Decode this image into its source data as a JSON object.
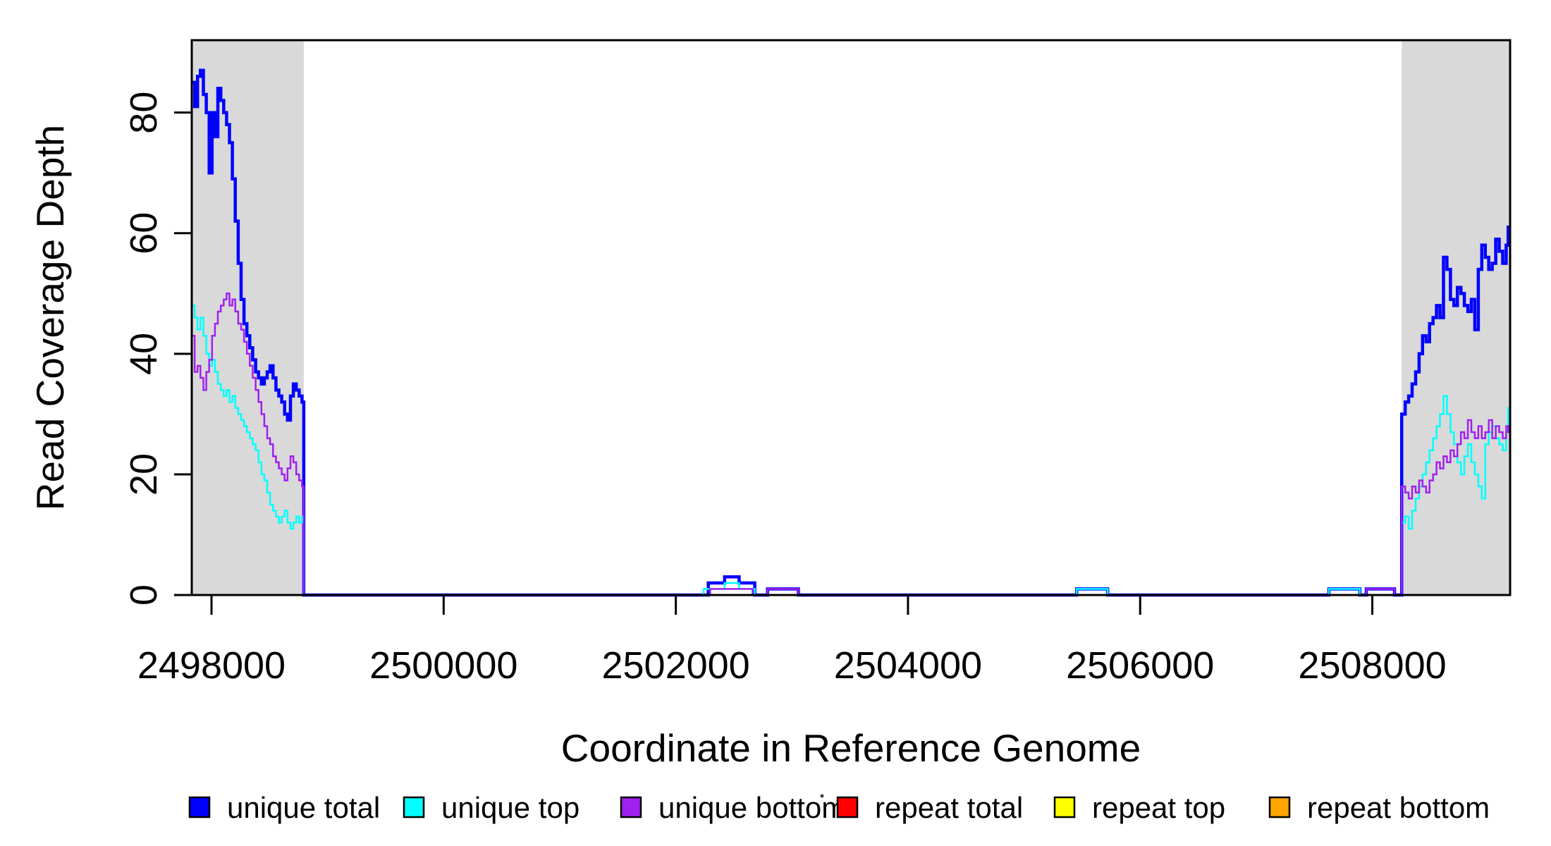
{
  "figure_title": "",
  "chart_data": {
    "type": "line",
    "subtype": "step",
    "title": "",
    "xlabel": "Coordinate in Reference Genome",
    "ylabel": "Read Coverage Depth",
    "xlim": [
      2497830,
      2509187
    ],
    "ylim": [
      0,
      92
    ],
    "x_ticks": [
      2498000,
      2500000,
      2502000,
      2504000,
      2506000,
      2508000
    ],
    "y_ticks": [
      0,
      20,
      40,
      60,
      80
    ],
    "grid": false,
    "legend_position": "bottom",
    "plot_background": "#FFFFFF",
    "plot_border_color": "#000000",
    "shaded_regions": [
      {
        "label": "repeat-region-left",
        "x0": 2497830,
        "x1": 2498795,
        "color": "#D9D9D9"
      },
      {
        "label": "repeat-region-right",
        "x0": 2508253,
        "x1": 2509187,
        "color": "#D9D9D9"
      }
    ],
    "series": [
      {
        "name": "unique total",
        "color": "#0000FF",
        "line_width": 4.5,
        "x": [
          2497830,
          2497855,
          2497880,
          2497905,
          2497930,
          2497955,
          2497980,
          2498005,
          2498030,
          2498055,
          2498080,
          2498105,
          2498130,
          2498155,
          2498180,
          2498205,
          2498230,
          2498255,
          2498280,
          2498305,
          2498330,
          2498355,
          2498380,
          2498405,
          2498430,
          2498455,
          2498480,
          2498505,
          2498530,
          2498555,
          2498580,
          2498605,
          2498630,
          2498655,
          2498680,
          2498705,
          2498730,
          2498755,
          2498780,
          2498795,
          2502280,
          2502420,
          2502545,
          2502680,
          2502790,
          2503056,
          2505453,
          2505720,
          2507626,
          2507893,
          2507948,
          2508191,
          2508253,
          2508283,
          2508313,
          2508343,
          2508373,
          2508403,
          2508433,
          2508463,
          2508493,
          2508523,
          2508553,
          2508583,
          2508613,
          2508643,
          2508673,
          2508703,
          2508733,
          2508763,
          2508793,
          2508823,
          2508853,
          2508883,
          2508913,
          2508943,
          2508973,
          2509003,
          2509033,
          2509063,
          2509093,
          2509123,
          2509153,
          2509170
        ],
        "v": [
          85,
          81,
          86,
          87,
          83,
          80,
          70,
          80,
          76,
          84,
          82,
          80,
          78,
          75,
          69,
          62,
          55,
          49,
          45,
          43,
          41,
          39,
          37,
          36,
          35,
          36,
          37,
          38,
          36,
          34,
          33,
          32,
          30,
          29,
          33,
          35,
          34,
          33,
          32,
          0,
          2,
          3,
          2,
          0,
          1,
          0,
          1,
          0,
          1,
          0,
          1,
          0,
          30,
          32,
          33,
          35,
          37,
          40,
          43,
          42,
          45,
          46,
          48,
          46,
          56,
          54,
          49,
          48,
          51,
          50,
          48,
          47,
          49,
          44,
          54,
          58,
          56,
          54,
          55,
          59,
          57,
          55,
          58,
          61
        ]
      },
      {
        "name": "unique top",
        "color": "#00FFFF",
        "line_width": 2.5,
        "x": [
          2497830,
          2497855,
          2497880,
          2497905,
          2497930,
          2497955,
          2497980,
          2498005,
          2498030,
          2498055,
          2498080,
          2498105,
          2498130,
          2498155,
          2498180,
          2498205,
          2498230,
          2498255,
          2498280,
          2498305,
          2498330,
          2498355,
          2498380,
          2498405,
          2498430,
          2498455,
          2498480,
          2498505,
          2498530,
          2498555,
          2498580,
          2498605,
          2498630,
          2498655,
          2498680,
          2498705,
          2498730,
          2498755,
          2498780,
          2498795,
          2502240,
          2502420,
          2502545,
          2502680,
          2505453,
          2505720,
          2507626,
          2507893,
          2508253,
          2508283,
          2508313,
          2508343,
          2508373,
          2508403,
          2508433,
          2508463,
          2508493,
          2508523,
          2508553,
          2508583,
          2508613,
          2508643,
          2508673,
          2508703,
          2508733,
          2508763,
          2508793,
          2508823,
          2508853,
          2508883,
          2508913,
          2508943,
          2508973,
          2509003,
          2509033,
          2509063,
          2509093,
          2509123,
          2509153,
          2509170
        ],
        "v": [
          48,
          46,
          44,
          46,
          43,
          40,
          38,
          39,
          37,
          35,
          34,
          33,
          34,
          32,
          33,
          31,
          30,
          29,
          28,
          27,
          26,
          25,
          24,
          22,
          20,
          19,
          17,
          15,
          14,
          13,
          12,
          13,
          14,
          12,
          11,
          12,
          13,
          12,
          13,
          0,
          1,
          2,
          1,
          0,
          1,
          0,
          1,
          0,
          12,
          13,
          11,
          14,
          16,
          18,
          20,
          22,
          24,
          26,
          28,
          30,
          33,
          30,
          27,
          25,
          22,
          20,
          23,
          25,
          22,
          20,
          18,
          16,
          25,
          27,
          28,
          26,
          25,
          24,
          27,
          31
        ]
      },
      {
        "name": "unique bottom",
        "color": "#A020F0",
        "line_width": 2.5,
        "x": [
          2497830,
          2497855,
          2497880,
          2497905,
          2497930,
          2497955,
          2497980,
          2498005,
          2498030,
          2498055,
          2498080,
          2498105,
          2498130,
          2498155,
          2498180,
          2498205,
          2498230,
          2498255,
          2498280,
          2498305,
          2498330,
          2498355,
          2498380,
          2498405,
          2498430,
          2498455,
          2498480,
          2498505,
          2498530,
          2498555,
          2498580,
          2498605,
          2498630,
          2498655,
          2498680,
          2498705,
          2498730,
          2498755,
          2498780,
          2498795,
          2502296,
          2502661,
          2502790,
          2503056,
          2507948,
          2508191,
          2508253,
          2508283,
          2508313,
          2508343,
          2508373,
          2508403,
          2508433,
          2508463,
          2508493,
          2508523,
          2508553,
          2508583,
          2508613,
          2508643,
          2508673,
          2508703,
          2508733,
          2508763,
          2508793,
          2508823,
          2508853,
          2508883,
          2508913,
          2508943,
          2508973,
          2509003,
          2509033,
          2509063,
          2509093,
          2509123,
          2509153,
          2509170
        ],
        "v": [
          43,
          37,
          38,
          36,
          34,
          37,
          39,
          43,
          45,
          47,
          48,
          49,
          50,
          48,
          49,
          47,
          45,
          44,
          42,
          40,
          38,
          36,
          34,
          32,
          30,
          28,
          26,
          25,
          23,
          22,
          21,
          20,
          19,
          21,
          23,
          22,
          20,
          19,
          18,
          0,
          1,
          0,
          1,
          0,
          1,
          0,
          18,
          17,
          16,
          18,
          17,
          19,
          18,
          17,
          19,
          20,
          22,
          21,
          23,
          22,
          24,
          23,
          25,
          27,
          26,
          29,
          27,
          26,
          28,
          26,
          27,
          29,
          26,
          28,
          27,
          26,
          28,
          27
        ]
      },
      {
        "name": "repeat total",
        "color": "#FF0000",
        "line_width": 2.5,
        "value": 0,
        "segments": [
          [
            2497830,
            2498795
          ],
          [
            2502450,
            2502680
          ],
          [
            2505453,
            2505720
          ],
          [
            2507626,
            2507893
          ],
          [
            2508253,
            2509187
          ]
        ]
      },
      {
        "name": "repeat top",
        "color": "#FFFF00",
        "line_width": 2.5,
        "value": 0,
        "segments": [
          [
            2497830,
            2498795
          ],
          [
            2502790,
            2503056
          ],
          [
            2507948,
            2508191
          ],
          [
            2508253,
            2509187
          ]
        ]
      },
      {
        "name": "repeat bottom",
        "color": "#FFA500",
        "line_width": 3,
        "value": 0,
        "segments": [
          [
            2497830,
            2498795
          ],
          [
            2502296,
            2502545
          ],
          [
            2508253,
            2509187
          ]
        ]
      }
    ],
    "legend": [
      {
        "label": "unique total",
        "color": "#0000FF"
      },
      {
        "label": "unique top",
        "color": "#00FFFF"
      },
      {
        "label": "unique bottom",
        "color": "#A020F0"
      },
      {
        "label": "repeat total",
        "color": "#FF0000"
      },
      {
        "label": "repeat top",
        "color": "#FFFF00"
      },
      {
        "label": "repeat bottom",
        "color": "#FFA500"
      }
    ]
  }
}
